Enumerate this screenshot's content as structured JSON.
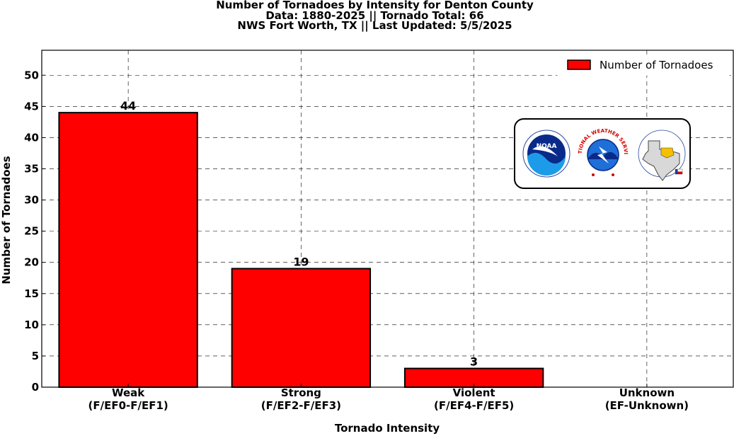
{
  "chart_data": {
    "type": "bar",
    "title_lines": [
      "Number of Tornadoes by Intensity for Denton County",
      "Data: 1880-2025 || Tornado Total: 66",
      "NWS Fort Worth, TX || Last Updated: 5/5/2025"
    ],
    "xlabel": "Tornado Intensity",
    "ylabel": "Number of Tornadoes",
    "categories": [
      [
        "Weak",
        "(F/EF0-F/EF1)"
      ],
      [
        "Strong",
        "(F/EF2-F/EF3)"
      ],
      [
        "Violent",
        "(F/EF4-F/EF5)"
      ],
      [
        "Unknown",
        "(EF-Unknown)"
      ]
    ],
    "series": [
      {
        "name": "Number of Tornadoes",
        "values": [
          44,
          19,
          3,
          0
        ],
        "color": "#ff0000"
      }
    ],
    "data_labels": [
      "44",
      "19",
      "3"
    ],
    "ylim": [
      0,
      54
    ],
    "yticks": [
      0,
      5,
      10,
      15,
      20,
      25,
      30,
      35,
      40,
      45,
      50
    ],
    "grid": true,
    "legend_position": "top-right"
  },
  "logos": {
    "noaa_text": "NOAA",
    "nws_text": "NATIONAL WEATHER SERVICE"
  }
}
